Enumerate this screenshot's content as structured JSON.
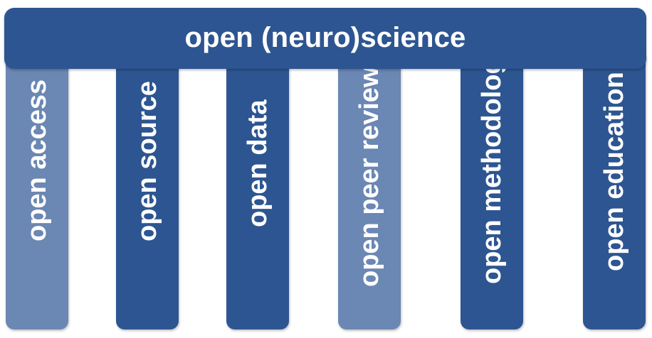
{
  "title": "open (neuro)science",
  "pillars": [
    {
      "label": "open access",
      "shade": "light"
    },
    {
      "label": "open source",
      "shade": "dark"
    },
    {
      "label": "open data",
      "shade": "dark"
    },
    {
      "label": "open peer review",
      "shade": "light"
    },
    {
      "label": "open methodology",
      "shade": "dark"
    },
    {
      "label": "open education",
      "shade": "dark"
    }
  ],
  "colors": {
    "dark": "#2d5591",
    "light": "#6b87b3",
    "text": "#ffffff"
  }
}
